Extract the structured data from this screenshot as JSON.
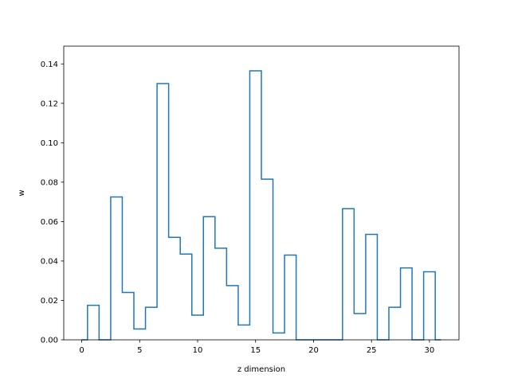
{
  "chart_data": {
    "type": "step",
    "title": "",
    "xlabel": "z dimension",
    "ylabel": "w",
    "xlim": [
      -1.55,
      32.55
    ],
    "ylim": [
      0.0,
      0.149
    ],
    "xticks": [
      0,
      5,
      10,
      15,
      20,
      25,
      30
    ],
    "yticks": [
      0.0,
      0.02,
      0.04,
      0.06,
      0.08,
      0.1,
      0.12,
      0.14
    ],
    "xtick_labels": [
      "0",
      "5",
      "10",
      "15",
      "20",
      "25",
      "30"
    ],
    "ytick_labels": [
      "0.00",
      "0.02",
      "0.04",
      "0.06",
      "0.08",
      "0.10",
      "0.12",
      "0.14"
    ],
    "step_where": "mid",
    "color": "#1f77b4",
    "grid": false,
    "x": [
      0,
      1,
      2,
      3,
      4,
      5,
      6,
      7,
      8,
      9,
      10,
      11,
      12,
      13,
      14,
      15,
      16,
      17,
      18,
      19,
      20,
      21,
      22,
      23,
      24,
      25,
      26,
      27,
      28,
      29,
      30,
      31
    ],
    "y": [
      0.0,
      0.0175,
      0.0,
      0.0725,
      0.024,
      0.0055,
      0.0165,
      0.13,
      0.052,
      0.0435,
      0.0125,
      0.0625,
      0.0465,
      0.0275,
      0.0075,
      0.1365,
      0.0815,
      0.0035,
      0.043,
      0.0,
      0.0,
      0.0,
      0.0,
      0.0665,
      0.0133,
      0.0535,
      0.0,
      0.0165,
      0.0365,
      0.0,
      0.0345,
      0.0
    ]
  }
}
